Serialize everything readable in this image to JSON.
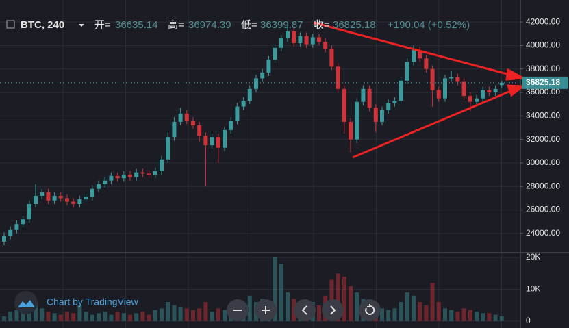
{
  "header": {
    "symbol": "BTC, 240",
    "open_label": "开=",
    "open": "36635.14",
    "high_label": "高=",
    "high": "36974.39",
    "low_label": "低=",
    "low": "36399.87",
    "close_label": "收=",
    "close": "36825.18",
    "change": "+190.04 (+0.52%)",
    "branding": "Chart by TradingView"
  },
  "chart_data": {
    "type": "candlestick",
    "open": [
      23300,
      23800,
      24300,
      24800,
      25200,
      26500,
      27200,
      27500,
      26800,
      27200,
      27000,
      26700,
      26500,
      26900,
      27100,
      27800,
      28200,
      28500,
      28900,
      28700,
      29000,
      28800,
      29200,
      29100,
      29000,
      29300,
      30300,
      32200,
      33500,
      34200,
      33600,
      33200,
      32300,
      31500,
      32200,
      31300,
      32800,
      33600,
      34800,
      35300,
      36300,
      37200,
      37700,
      38800,
      39800,
      40600,
      41200,
      40200,
      40800,
      40100,
      40700,
      40300,
      39700,
      38200,
      36300,
      33500,
      32000,
      35200,
      36300,
      34700,
      33500,
      34500,
      35100,
      35300,
      37000,
      38600,
      39600,
      38900,
      38000,
      36200,
      35500,
      37200,
      37300,
      36900,
      35700,
      35200,
      35500,
      36200,
      36000,
      36635.14
    ],
    "high": [
      24100,
      24600,
      25100,
      25500,
      26800,
      28200,
      27800,
      27800,
      27500,
      27500,
      27300,
      27000,
      27200,
      27400,
      28100,
      28500,
      28800,
      29200,
      29200,
      29300,
      29300,
      29500,
      29500,
      29400,
      29600,
      30600,
      32600,
      33900,
      34700,
      34500,
      33900,
      33500,
      32600,
      32500,
      32500,
      33100,
      33900,
      35100,
      35600,
      36600,
      37500,
      38000,
      39100,
      40100,
      40900,
      41600,
      41500,
      41100,
      41100,
      41000,
      41000,
      40600,
      40000,
      38500,
      36600,
      33800,
      35500,
      36600,
      36600,
      35000,
      34800,
      35400,
      35600,
      37300,
      38900,
      40000,
      39900,
      39200,
      38300,
      36500,
      37500,
      37800,
      37600,
      37200,
      36000,
      35800,
      36500,
      36500,
      36600,
      36974.39
    ],
    "low": [
      23000,
      23500,
      24000,
      24500,
      24900,
      26200,
      26900,
      26500,
      26500,
      26700,
      26400,
      26200,
      26200,
      26600,
      26800,
      27500,
      27900,
      28200,
      28400,
      28400,
      28500,
      28500,
      28800,
      28700,
      28700,
      29000,
      30000,
      31900,
      33200,
      33300,
      32900,
      31800,
      28000,
      31200,
      30000,
      31000,
      32500,
      33300,
      34500,
      35000,
      36000,
      36900,
      37400,
      38500,
      39500,
      40300,
      39900,
      39900,
      39800,
      39800,
      40000,
      39400,
      37900,
      36000,
      32500,
      30900,
      31700,
      34900,
      34400,
      32600,
      33200,
      34200,
      34800,
      35000,
      36700,
      38300,
      38600,
      37700,
      34800,
      35200,
      35200,
      36900,
      36600,
      35400,
      34400,
      34900,
      35200,
      35700,
      35700,
      36399.87
    ],
    "close": [
      23800,
      24300,
      24800,
      25200,
      26500,
      27200,
      27500,
      26800,
      27200,
      27000,
      26700,
      26500,
      26900,
      27100,
      27800,
      28200,
      28500,
      28900,
      28700,
      29000,
      28800,
      29200,
      29100,
      29000,
      29300,
      30300,
      32200,
      33500,
      34200,
      33600,
      33200,
      32300,
      31500,
      32200,
      31300,
      32800,
      33600,
      34800,
      35300,
      36300,
      37200,
      37700,
      38800,
      39800,
      40600,
      41200,
      40200,
      40800,
      40100,
      40700,
      40300,
      39700,
      38200,
      36300,
      33500,
      32000,
      35200,
      36300,
      34700,
      33500,
      34500,
      35100,
      35300,
      37000,
      38600,
      39600,
      38900,
      38000,
      36200,
      35500,
      37200,
      37300,
      36900,
      35700,
      35200,
      35500,
      36200,
      36000,
      36300,
      36825.18
    ],
    "volume": [
      1500,
      3000,
      3500,
      2500,
      4000,
      6000,
      4000,
      3000,
      2500,
      2000,
      3000,
      2500,
      5000,
      3000,
      2000,
      2500,
      3000,
      2000,
      3000,
      2500,
      2000,
      2500,
      3000,
      2000,
      3500,
      4000,
      6000,
      5000,
      4500,
      4000,
      3500,
      4000,
      6000,
      3000,
      4000,
      3500,
      3000,
      4000,
      5000,
      8000,
      6000,
      7000,
      5000,
      20000,
      18000,
      9000,
      7000,
      5000,
      4000,
      6000,
      5000,
      8000,
      13000,
      15000,
      14000,
      11000,
      9000,
      7000,
      6000,
      5000,
      4000,
      3500,
      4000,
      6000,
      9000,
      8000,
      6000,
      5000,
      12000,
      6000,
      4000,
      3500,
      3000,
      4000,
      3500,
      3000,
      2500,
      2500,
      2000,
      1500
    ],
    "up_color": "#3b9a9c",
    "down_color": "#d0323a",
    "ylim": [
      22360,
      43870
    ],
    "yticks": [
      {
        "value": 24000,
        "label": "24000.00"
      },
      {
        "value": 26000,
        "label": "26000.00"
      },
      {
        "value": 28000,
        "label": "28000.00"
      },
      {
        "value": 30000,
        "label": "30000.00"
      },
      {
        "value": 32000,
        "label": "32000.00"
      },
      {
        "value": 34000,
        "label": "34000.00"
      },
      {
        "value": 36000,
        "label": "36000.00"
      },
      {
        "value": 38000,
        "label": "38000.00"
      },
      {
        "value": 40000,
        "label": "40000.00"
      },
      {
        "value": 42000,
        "label": "42000.00"
      }
    ],
    "y2lim": [
      -2174,
      21522
    ],
    "y2ticks": [
      0,
      {
        "value": 10000,
        "label": "10K"
      },
      {
        "value": 20000,
        "label": "20K"
      }
    ],
    "last_price": {
      "value": 36825.18,
      "label": "36825.18"
    },
    "grid": true
  }
}
